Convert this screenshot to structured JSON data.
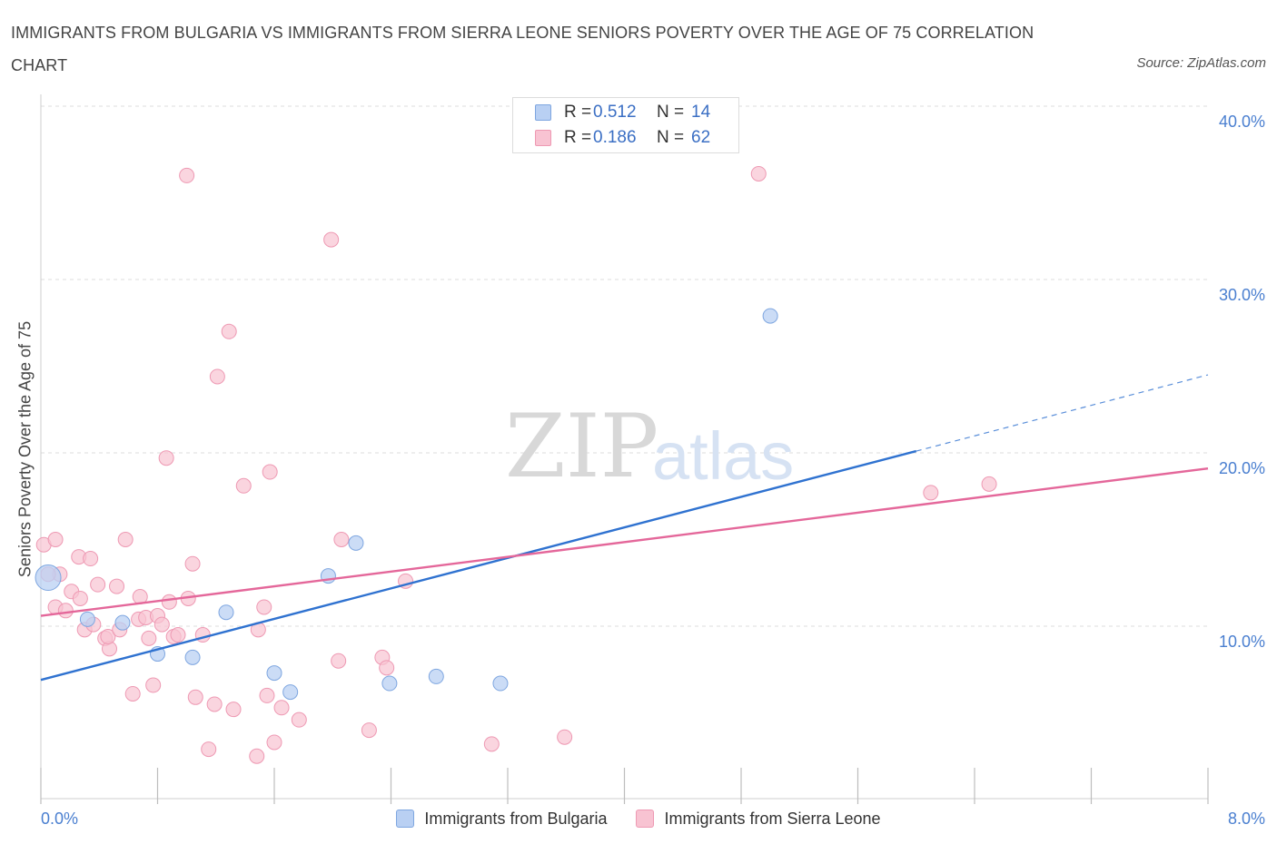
{
  "title": "IMMIGRANTS FROM BULGARIA VS IMMIGRANTS FROM SIERRA LEONE SENIORS POVERTY OVER THE AGE OF 75 CORRELATION CHART",
  "source": "Source: ZipAtlas.com",
  "watermark": {
    "zip": "ZIP",
    "atlas": "atlas"
  },
  "legend_top": [
    {
      "r_label": "R =",
      "r_value": "0.512",
      "n_label": "N =",
      "n_value": "14"
    },
    {
      "r_label": "R =",
      "r_value": "0.186",
      "n_label": "N =",
      "n_value": "62"
    }
  ],
  "legend_bottom": [
    "Immigrants from Bulgaria",
    "Immigrants from Sierra Leone"
  ],
  "colors": {
    "bulgaria_fill": "#b9d0f3",
    "bulgaria_stroke": "#7ea6e0",
    "bulgaria_line": "#2f72d0",
    "sierra_fill": "#f8c3d2",
    "sierra_stroke": "#ee99b3",
    "sierra_line": "#e4679a",
    "tick": "#4a7fd0",
    "grid": "#dddddd"
  },
  "chart_data": {
    "type": "scatter",
    "title": "IMMIGRANTS FROM BULGARIA VS IMMIGRANTS FROM SIERRA LEONE SENIORS POVERTY OVER THE AGE OF 75 CORRELATION CHART",
    "xlabel": "",
    "ylabel": "Seniors Poverty Over the Age of 75",
    "xlim": [
      0,
      8
    ],
    "ylim": [
      0,
      40
    ],
    "x_tick_labels": [
      "0.0%",
      "8.0%"
    ],
    "y_ticks": [
      10,
      20,
      30,
      40
    ],
    "y_tick_labels": [
      "10.0%",
      "20.0%",
      "30.0%",
      "40.0%"
    ],
    "grid": true,
    "legend_position": "bottom",
    "series": [
      {
        "name": "Immigrants from Bulgaria",
        "r": 0.512,
        "n": 14,
        "points": [
          [
            0.05,
            12.8
          ],
          [
            0.32,
            10.4
          ],
          [
            0.56,
            10.2
          ],
          [
            0.8,
            8.4
          ],
          [
            1.04,
            8.2
          ],
          [
            1.27,
            10.8
          ],
          [
            1.6,
            7.3
          ],
          [
            1.71,
            6.2
          ],
          [
            1.97,
            12.9
          ],
          [
            2.16,
            14.8
          ],
          [
            2.39,
            6.7
          ],
          [
            2.71,
            7.1
          ],
          [
            3.15,
            6.7
          ],
          [
            5.0,
            27.9
          ]
        ],
        "trend": {
          "x_start": 0.0,
          "y_start": 6.9,
          "x_solid_end": 6.0,
          "y_solid_end": 20.1,
          "x_dash_end": 8.0,
          "y_dash_end": 24.5
        }
      },
      {
        "name": "Immigrants from Sierra Leone",
        "r": 0.186,
        "n": 62,
        "points": [
          [
            0.02,
            14.7
          ],
          [
            0.1,
            15.0
          ],
          [
            0.13,
            13.0
          ],
          [
            0.1,
            11.1
          ],
          [
            0.17,
            10.9
          ],
          [
            0.21,
            12.0
          ],
          [
            0.26,
            14.0
          ],
          [
            0.27,
            11.6
          ],
          [
            0.3,
            9.8
          ],
          [
            0.34,
            13.9
          ],
          [
            0.36,
            10.1
          ],
          [
            0.39,
            12.4
          ],
          [
            0.44,
            9.3
          ],
          [
            0.47,
            8.7
          ],
          [
            0.46,
            9.4
          ],
          [
            0.52,
            12.3
          ],
          [
            0.54,
            9.8
          ],
          [
            0.58,
            15.0
          ],
          [
            0.63,
            6.1
          ],
          [
            0.67,
            10.4
          ],
          [
            0.68,
            11.7
          ],
          [
            0.72,
            10.5
          ],
          [
            0.74,
            9.3
          ],
          [
            0.77,
            6.6
          ],
          [
            0.8,
            10.6
          ],
          [
            0.83,
            10.1
          ],
          [
            0.86,
            19.7
          ],
          [
            0.88,
            11.4
          ],
          [
            0.91,
            9.4
          ],
          [
            0.94,
            9.5
          ],
          [
            1.01,
            11.6
          ],
          [
            1.04,
            13.6
          ],
          [
            1.06,
            5.9
          ],
          [
            1.11,
            9.5
          ],
          [
            1.15,
            2.9
          ],
          [
            1.19,
            5.5
          ],
          [
            1.21,
            24.4
          ],
          [
            1.29,
            27.0
          ],
          [
            1.32,
            5.2
          ],
          [
            1.39,
            18.1
          ],
          [
            1.48,
            2.5
          ],
          [
            1.49,
            9.8
          ],
          [
            1.53,
            11.1
          ],
          [
            1.55,
            6.0
          ],
          [
            1.57,
            18.9
          ],
          [
            1.6,
            3.3
          ],
          [
            1.65,
            5.3
          ],
          [
            1.77,
            4.6
          ],
          [
            1.99,
            32.3
          ],
          [
            2.04,
            8.0
          ],
          [
            2.06,
            15.0
          ],
          [
            2.25,
            4.0
          ],
          [
            2.34,
            8.2
          ],
          [
            2.37,
            7.6
          ],
          [
            2.5,
            12.6
          ],
          [
            3.09,
            3.2
          ],
          [
            3.59,
            3.6
          ],
          [
            4.92,
            36.1
          ],
          [
            6.1,
            17.7
          ],
          [
            6.5,
            18.2
          ],
          [
            1.0,
            36.0
          ],
          [
            0.05,
            13.0
          ]
        ],
        "trend": {
          "x_start": 0.0,
          "y_start": 10.6,
          "x_end": 8.0,
          "y_end": 19.1
        }
      }
    ]
  }
}
